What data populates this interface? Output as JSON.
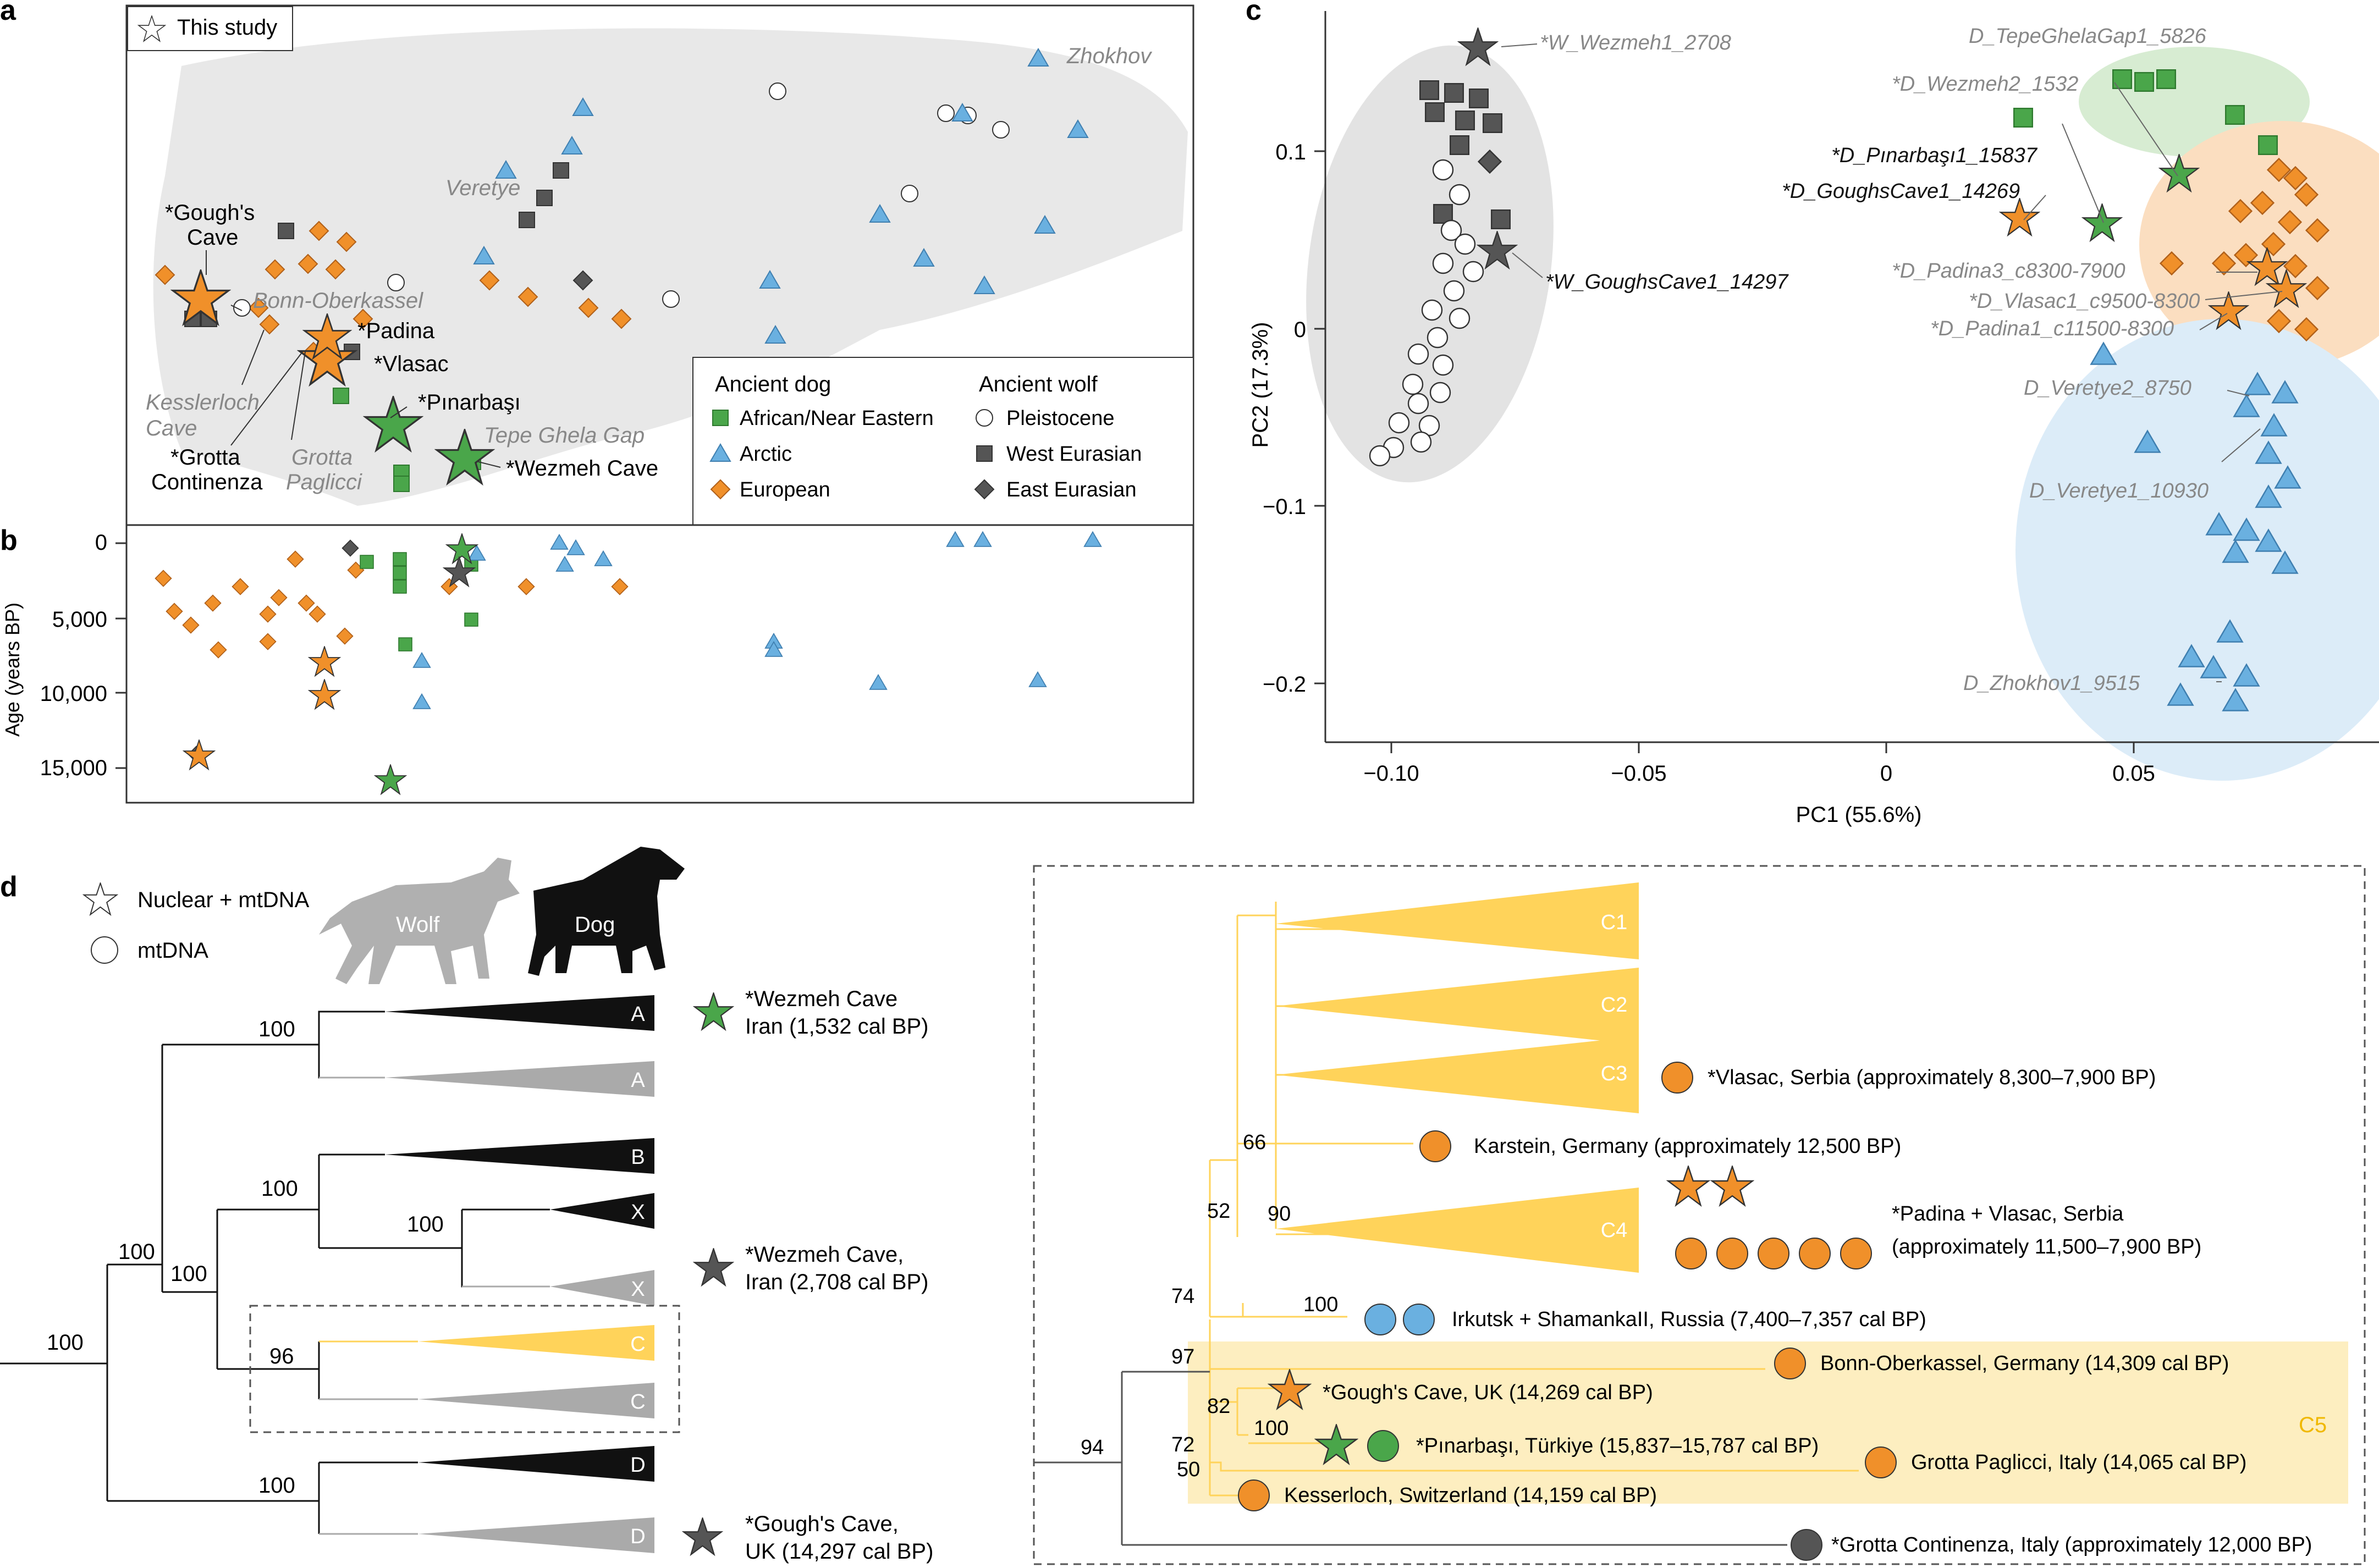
{
  "colors": {
    "green": "#4aa64a",
    "blue": "#6ab0e0",
    "orange": "#f0902a",
    "dark": "#555555",
    "gray": "#aaaaaa",
    "yellow": "#ffd35a",
    "c5bg": "#fdeec0"
  },
  "panel_a": {
    "label": "a",
    "legend_star": "This study",
    "map_labels": {
      "zhokhov": "Zhokhov",
      "veretye": "Veretye",
      "goughs": "*Gough's",
      "goughs2": "Cave",
      "bonn": "Bonn-Oberkassel",
      "padina": "*Padina",
      "vlasac": "*Vlasac",
      "pinarbasi": "*Pınarbaşı",
      "tepe": "Tepe Ghela Gap",
      "wezmeh": "*Wezmeh Cave",
      "kesslerloch": "Kesslerloch",
      "kesslerloch2": "Cave",
      "grotta_c": "*Grotta",
      "grotta_c2": "Continenza",
      "grotta_p": "Grotta",
      "grotta_p2": "Paglicci"
    },
    "legend": {
      "dog_title": "Ancient dog",
      "dog_items": [
        "African/Near Eastern",
        "Arctic",
        "European"
      ],
      "wolf_title": "Ancient wolf",
      "wolf_items": [
        "Pleistocene",
        "West Eurasian",
        "East Eurasian"
      ]
    }
  },
  "panel_b": {
    "label": "b",
    "ylabel": "Age (years BP)",
    "ticks": [
      "0",
      "5,000",
      "10,000",
      "15,000"
    ]
  },
  "panel_c": {
    "label": "c",
    "xlabel": "PC1 (55.6%)",
    "ylabel": "PC2 (17.3%)",
    "xticks": [
      "−0.10",
      "−0.05",
      "0",
      "0.05"
    ],
    "yticks": [
      "0.1",
      "0",
      "−0.1",
      "−0.2"
    ],
    "labels": [
      "*W_Wezmeh1_2708",
      "*W_GoughsCave1_14297",
      "D_TepeGhelaGap1_5826",
      "*D_Wezmeh2_1532",
      "*D_Pınarbaşı1_15837",
      "*D_GoughsCave1_14269",
      "*D_Padina3_c8300-7900",
      "*D_Vlasac1_c9500-8300",
      "*D_Padina1_c11500-8300",
      "D_Veretye2_8750",
      "D_Veretye1_10930",
      "D_Zhokhov1_9515"
    ]
  },
  "panel_d": {
    "label": "d",
    "legend_nuclear": "Nuclear + mtDNA",
    "legend_mt": "mtDNA",
    "wolf": "Wolf",
    "dog": "Dog",
    "clades": [
      "A",
      "A",
      "B",
      "X",
      "X",
      "C",
      "C",
      "D",
      "D"
    ],
    "supports": [
      "100",
      "100",
      "100",
      "100",
      "100",
      "96",
      "100"
    ],
    "annot1a": "*Wezmeh Cave",
    "annot1b": "Iran (1,532 cal BP)",
    "annot2a": "*Wezmeh Cave,",
    "annot2b": "Iran (2,708 cal BP)",
    "annot3a": "*Gough's Cave,",
    "annot3b": "UK (14,297 cal BP)"
  },
  "panel_e": {
    "clades": [
      "C1",
      "C2",
      "C3",
      "C4",
      "C5"
    ],
    "supports": [
      "66",
      "52",
      "90",
      "74",
      "100",
      "97",
      "82",
      "100",
      "72",
      "50",
      "94"
    ],
    "tips": [
      "*Vlasac, Serbia (approximately 8,300–7,900 BP)",
      "Karstein, Germany (approximately 12,500 BP)",
      "*Padina + Vlasac, Serbia",
      "(approximately 11,500–7,900 BP)",
      "Irkutsk + ShamankaII, Russia (7,400–7,357 cal BP)",
      "Bonn-Oberkassel, Germany (14,309 cal BP)",
      "*Gough's Cave, UK (14,269 cal BP)",
      "*Pınarbaşı, Türkiye (15,837–15,787 cal BP)",
      "Grotta Paglicci, Italy (14,065 cal BP)",
      "Kesserloch, Switzerland (14,159 cal BP)",
      "*Grotta Continenza, Italy (approximately 12,000 BP)"
    ]
  }
}
